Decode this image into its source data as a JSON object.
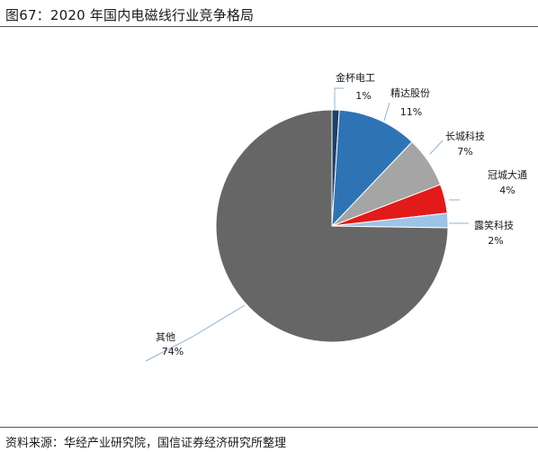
{
  "figure": {
    "title": "图67：2020 年国内电磁线行业竞争格局",
    "source": "资料来源：华经产业研究院，国信证券经济研究所整理"
  },
  "chart_data": {
    "type": "pie",
    "start_angle_deg": 0,
    "direction": "clockwise",
    "slices": [
      {
        "name": "金杯电工",
        "value": 1,
        "label": "1%",
        "color": "#1f3f66"
      },
      {
        "name": "精达股份",
        "value": 11,
        "label": "11%",
        "color": "#2e74b5"
      },
      {
        "name": "长城科技",
        "value": 7,
        "label": "7%",
        "color": "#a5a5a5"
      },
      {
        "name": "冠城大通",
        "value": 4,
        "label": "4%",
        "color": "#e21a1a"
      },
      {
        "name": "露笑科技",
        "value": 2,
        "label": "2%",
        "color": "#9dc3e6"
      },
      {
        "name": "其他",
        "value": 74,
        "label": "74%",
        "color": "#666666"
      }
    ]
  }
}
